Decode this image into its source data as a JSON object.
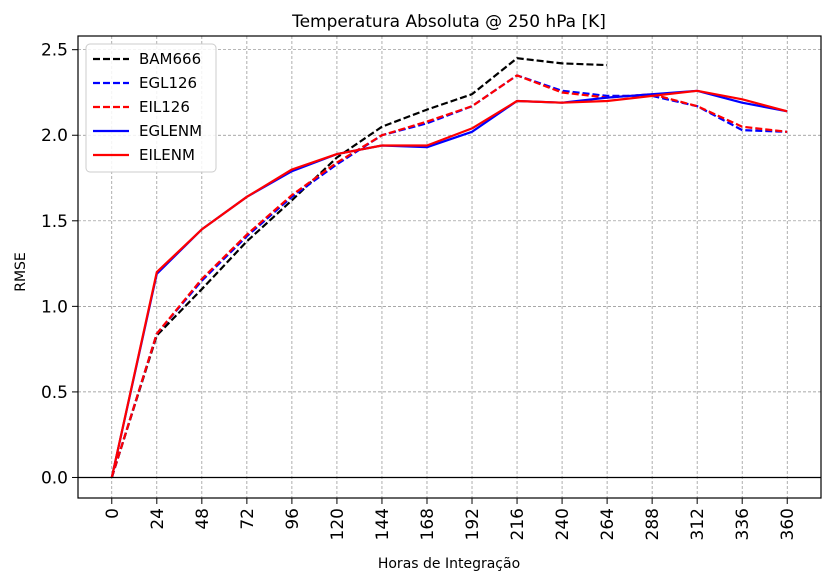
{
  "chart_data": {
    "type": "line",
    "title": "Temperatura Absoluta @ 250 hPa [K]",
    "xlabel": "Horas de Integração",
    "ylabel": "RMSE",
    "x": [
      0,
      24,
      48,
      72,
      96,
      120,
      144,
      168,
      192,
      216,
      240,
      264,
      288,
      312,
      336,
      360
    ],
    "xticks": [
      "0",
      "24",
      "48",
      "72",
      "96",
      "120",
      "144",
      "168",
      "192",
      "216",
      "240",
      "264",
      "288",
      "312",
      "336",
      "360"
    ],
    "yticks": [
      "0.0",
      "0.5",
      "1.0",
      "1.5",
      "2.0",
      "2.5"
    ],
    "xlim": [
      -18,
      378
    ],
    "ylim": [
      -0.12,
      2.58
    ],
    "grid": true,
    "legend_position": "top-left",
    "series": [
      {
        "name": "BAM666",
        "color": "#000000",
        "style": "dashed",
        "values": [
          0.0,
          0.83,
          1.1,
          1.38,
          1.62,
          1.87,
          2.05,
          2.15,
          2.24,
          2.45,
          2.42,
          2.41,
          null,
          null,
          null,
          null
        ]
      },
      {
        "name": "EGL126",
        "color": "#0000ff",
        "style": "dashed",
        "values": [
          0.0,
          0.84,
          1.15,
          1.41,
          1.64,
          1.83,
          2.0,
          2.07,
          2.17,
          2.35,
          2.26,
          2.23,
          2.23,
          2.17,
          2.03,
          2.02
        ]
      },
      {
        "name": "EIL126",
        "color": "#ff0000",
        "style": "dashed",
        "values": [
          0.0,
          0.84,
          1.16,
          1.42,
          1.65,
          1.84,
          2.0,
          2.08,
          2.17,
          2.35,
          2.25,
          2.22,
          2.24,
          2.17,
          2.05,
          2.02
        ]
      },
      {
        "name": "EGLENM",
        "color": "#0000ff",
        "style": "solid",
        "values": [
          0.0,
          1.19,
          1.45,
          1.64,
          1.79,
          1.89,
          1.94,
          1.93,
          2.02,
          2.2,
          2.19,
          2.22,
          2.24,
          2.26,
          2.19,
          2.14
        ]
      },
      {
        "name": "EILENM",
        "color": "#ff0000",
        "style": "solid",
        "values": [
          0.0,
          1.2,
          1.45,
          1.64,
          1.8,
          1.89,
          1.94,
          1.94,
          2.04,
          2.2,
          2.19,
          2.2,
          2.23,
          2.26,
          2.21,
          2.14
        ]
      }
    ]
  }
}
